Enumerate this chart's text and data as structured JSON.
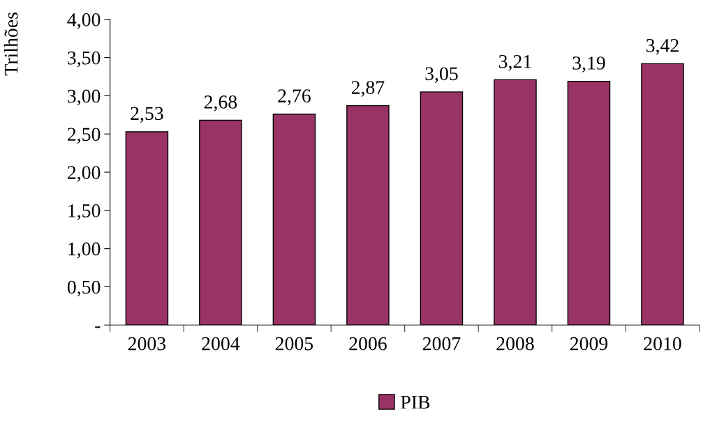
{
  "chart_data": {
    "type": "bar",
    "ylabel": "Trilhões",
    "categories": [
      "2003",
      "2004",
      "2005",
      "2006",
      "2007",
      "2008",
      "2009",
      "2010"
    ],
    "series": [
      {
        "name": "PIB",
        "color": "#993366",
        "values": [
          2.53,
          2.68,
          2.76,
          2.87,
          3.05,
          3.21,
          3.19,
          3.42
        ],
        "value_labels": [
          "2,53",
          "2,68",
          "2,76",
          "2,87",
          "3,05",
          "3,21",
          "3,19",
          "3,42"
        ]
      }
    ],
    "ylim": [
      0,
      4
    ],
    "yticks": [
      {
        "value": 0,
        "label": "-"
      },
      {
        "value": 0.5,
        "label": "0,50"
      },
      {
        "value": 1,
        "label": "1,00"
      },
      {
        "value": 1.5,
        "label": "1,50"
      },
      {
        "value": 2,
        "label": "2,00"
      },
      {
        "value": 2.5,
        "label": "2,50"
      },
      {
        "value": 3,
        "label": "3,00"
      },
      {
        "value": 3.5,
        "label": "3,50"
      },
      {
        "value": 4,
        "label": "4,00"
      }
    ],
    "grid": false,
    "legend": "bottom"
  }
}
